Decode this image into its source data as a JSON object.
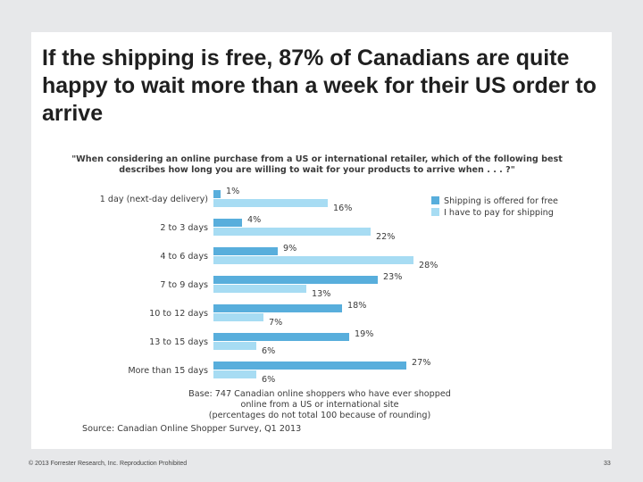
{
  "slide": {
    "title": "If the shipping is free, 87% of Canadians are quite happy to wait more than a week for their US order to arrive"
  },
  "footer": {
    "copyright": "© 2013 Forrester Research, Inc. Reproduction Prohibited",
    "page_number": "33"
  },
  "colors": {
    "free": "#58aedc",
    "pay": "#a7dcf3",
    "text": "#3a3a3a"
  },
  "chart_data": {
    "type": "bar",
    "orientation": "horizontal",
    "title": "\"When considering an online purchase from a US or international retailer, which of the following best describes how long you are willing to wait for your products to arrive when . . . ?\"",
    "title_lines": [
      "\"When considering an online purchase from a US or international retailer, which of the following best",
      "describes how long you are willing to wait for your products to arrive when . . . ?\""
    ],
    "categories": [
      "1 day (next-day delivery)",
      "2 to 3 days",
      "4 to 6 days",
      "7 to 9 days",
      "10 to 12 days",
      "13 to 15 days",
      "More than 15 days"
    ],
    "series": [
      {
        "name": "Shipping is offered for free",
        "values": [
          1,
          4,
          9,
          23,
          18,
          19,
          27
        ],
        "labels": [
          "1%",
          "4%",
          "9%",
          "23%",
          "18%",
          "19%",
          "27%"
        ]
      },
      {
        "name": "I have to pay for shipping",
        "values": [
          16,
          22,
          28,
          13,
          7,
          6,
          6
        ],
        "labels": [
          "16%",
          "22%",
          "28%",
          "13%",
          "7%",
          "6%",
          "6%"
        ]
      }
    ],
    "legend_position": "top-right",
    "grid": false,
    "base_note_lines": [
      "Base: 747 Canadian online shoppers who have ever shopped",
      "online from a US or international site",
      "(percentages do not total 100 because of rounding)"
    ],
    "source": "Source: Canadian Online Shopper Survey, Q1 2013"
  }
}
